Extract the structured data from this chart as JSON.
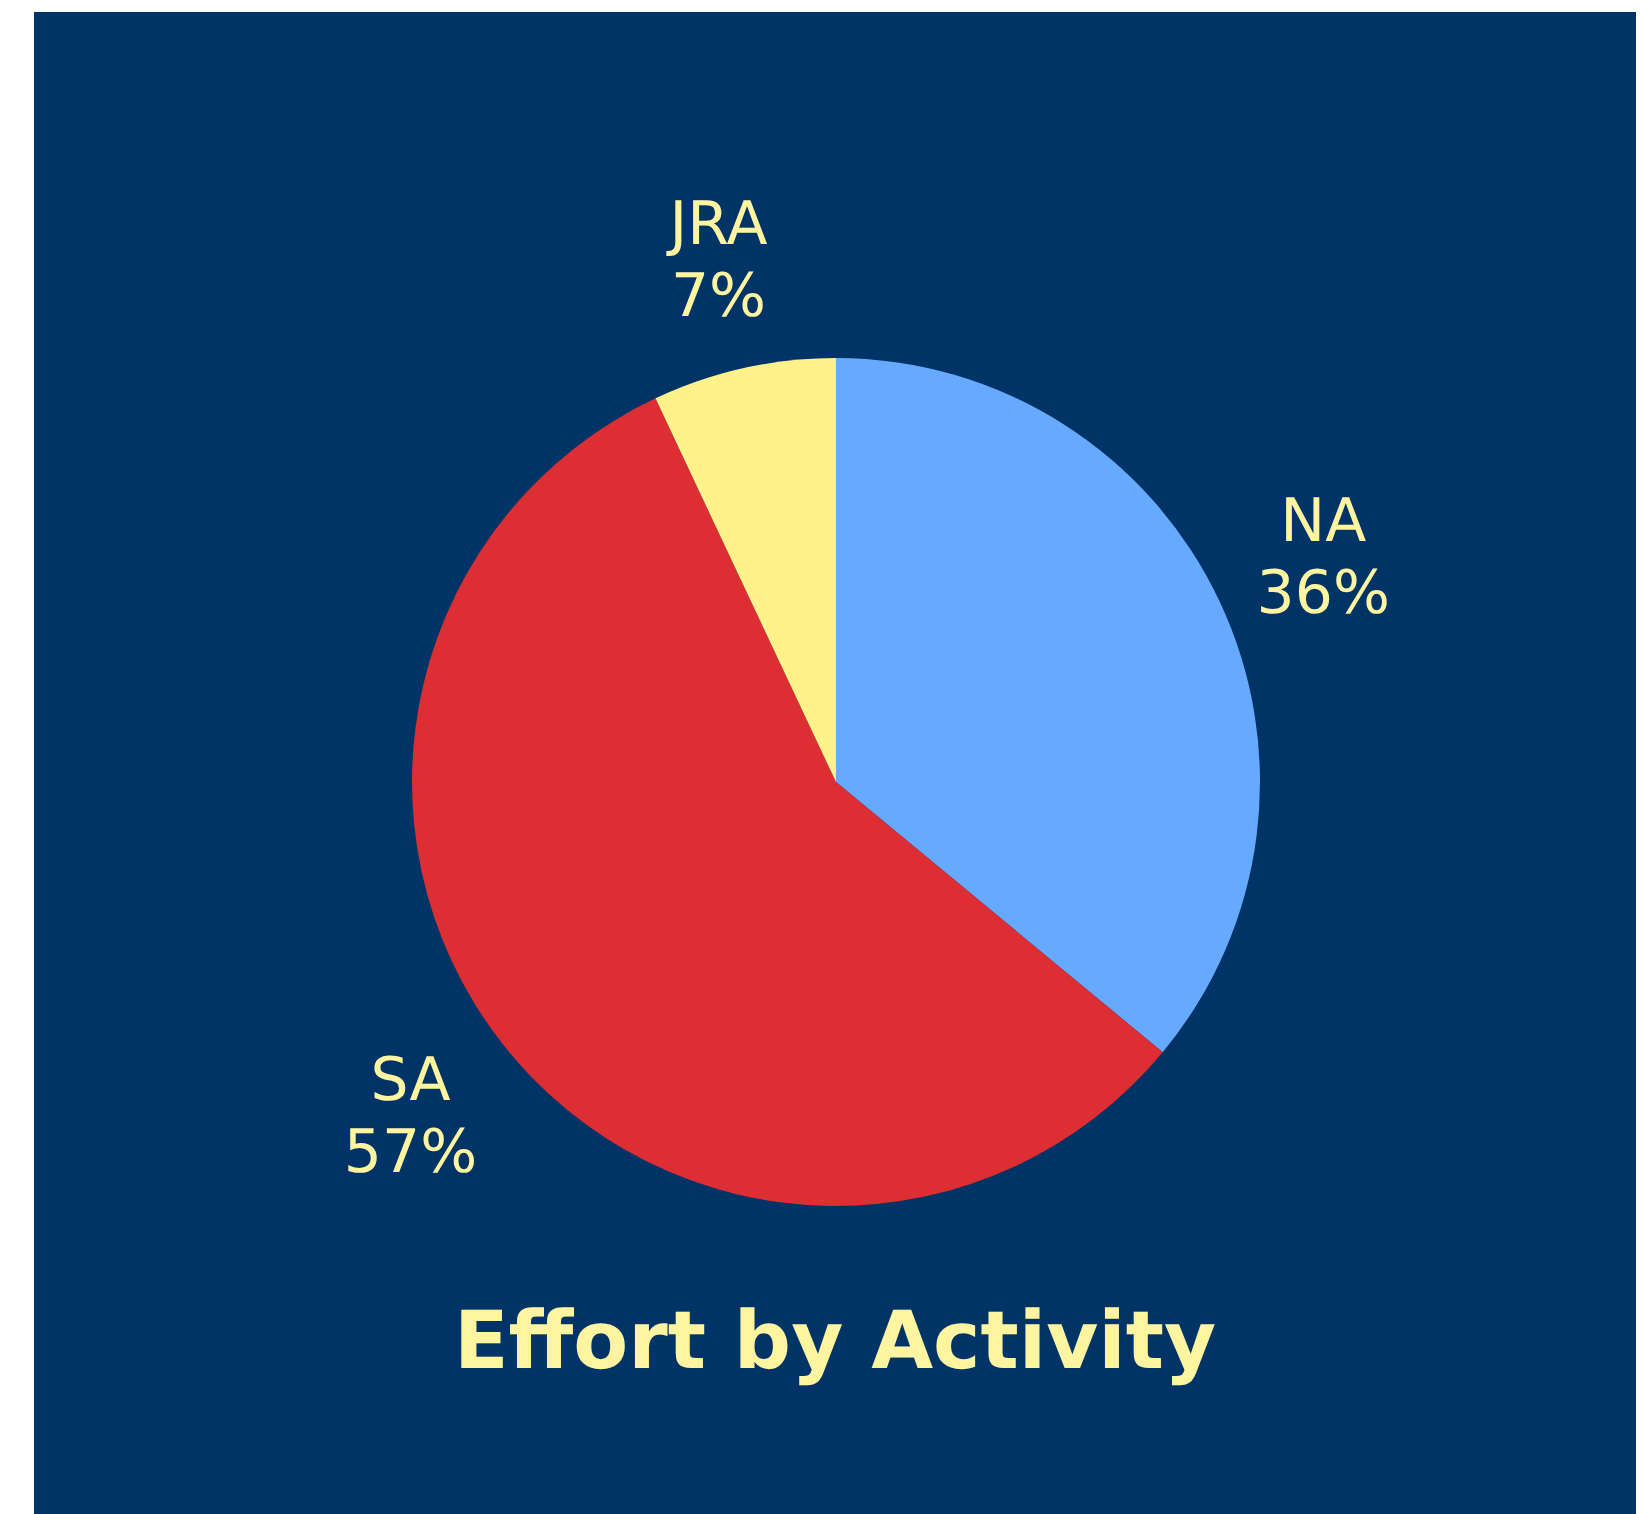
{
  "chart_data": {
    "type": "pie",
    "title": "Effort by Activity",
    "categories": [
      "NA",
      "SA",
      "JRA"
    ],
    "values": [
      36,
      57,
      7
    ],
    "value_labels": [
      "36%",
      "57%",
      "7%"
    ],
    "colors": [
      "#66aaff",
      "#dd2e33",
      "#fff28a"
    ],
    "legend": false
  }
}
